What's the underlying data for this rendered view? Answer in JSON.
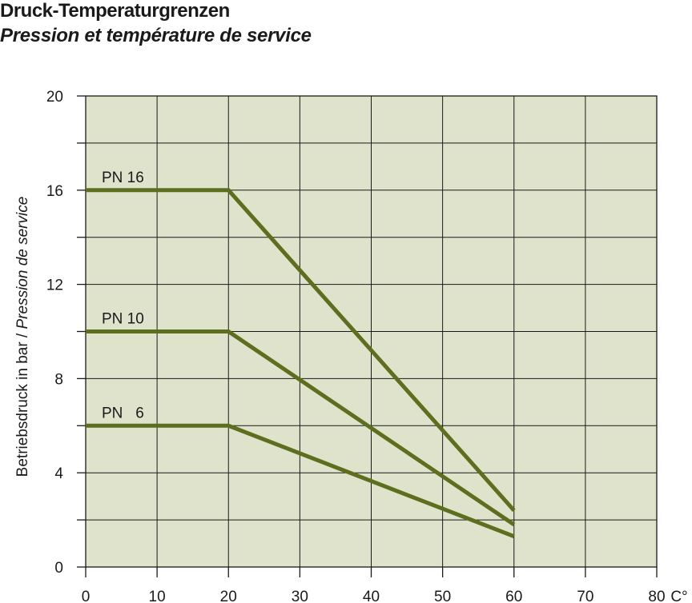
{
  "header": {
    "title": "Druck-Temperaturgrenzen",
    "subtitle": "Pression et température de service"
  },
  "chart_data": {
    "type": "line",
    "title": "Druck-Temperaturgrenzen",
    "subtitle": "Pression et température de service",
    "xlabel": "C°",
    "ylabel_part1": "Betriebsdruck in bar / ",
    "ylabel_part2": "Pression de service",
    "xlim": [
      0,
      80
    ],
    "ylim": [
      0,
      20
    ],
    "x_ticks": [
      0,
      10,
      20,
      30,
      40,
      50,
      60,
      70,
      80
    ],
    "y_ticks": [
      0,
      4,
      8,
      12,
      16,
      20
    ],
    "grid": true,
    "background_color": "#dfe3cc",
    "line_color": "#5d6e1f",
    "series": [
      {
        "name": "PN 16",
        "x": [
          0,
          20,
          60
        ],
        "y": [
          16,
          16,
          2.4
        ]
      },
      {
        "name": "PN 10",
        "x": [
          0,
          20,
          60
        ],
        "y": [
          10,
          10,
          1.8
        ]
      },
      {
        "name": "PN   6",
        "x": [
          0,
          20,
          60
        ],
        "y": [
          6,
          6,
          1.3
        ]
      }
    ]
  }
}
